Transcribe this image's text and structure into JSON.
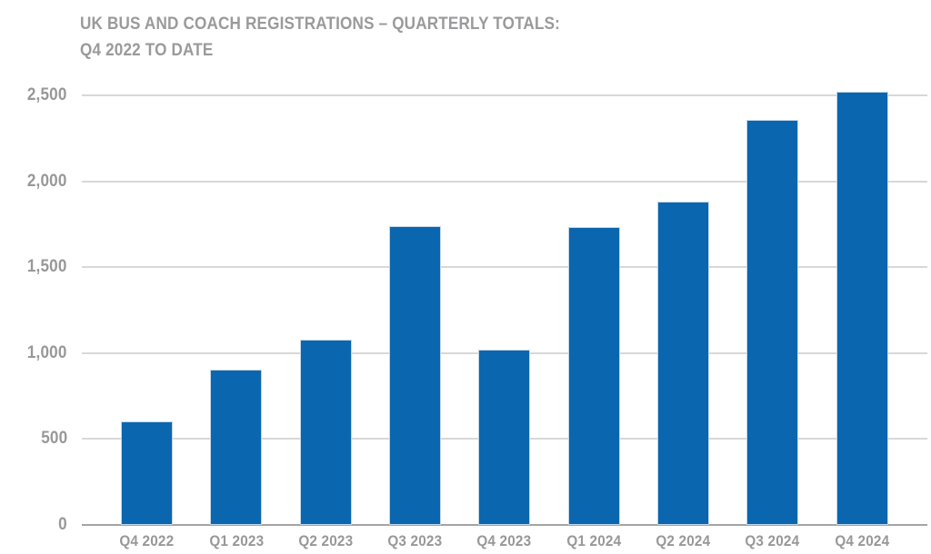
{
  "title": {
    "line1": "UK BUS AND COACH REGISTRATIONS – QUARTERLY TOTALS:",
    "line2": "Q4 2022 TO DATE"
  },
  "chart_data": {
    "type": "bar",
    "title": "UK BUS AND COACH REGISTRATIONS – QUARTERLY TOTALS: Q4 2022 TO DATE",
    "categories": [
      "Q4 2022",
      "Q1 2023",
      "Q2 2023",
      "Q3 2023",
      "Q4 2023",
      "Q1 2024",
      "Q2 2024",
      "Q3 2024",
      "Q4 2024"
    ],
    "values": [
      600,
      905,
      1080,
      1740,
      1020,
      1735,
      1880,
      2355,
      2520
    ],
    "xlabel": "",
    "ylabel": "",
    "ylim": [
      0,
      2500
    ],
    "ytick_interval": 500,
    "yticks": [
      {
        "value": 0,
        "label": "0"
      },
      {
        "value": 500,
        "label": "500"
      },
      {
        "value": 1000,
        "label": "1,000"
      },
      {
        "value": 1500,
        "label": "1,500"
      },
      {
        "value": 2000,
        "label": "2,000"
      },
      {
        "value": 2500,
        "label": "2,500"
      }
    ],
    "grid": true,
    "legend": false
  },
  "colors": {
    "bar": "#0a66ae",
    "bar_edge": "#c3d6e8",
    "title_text": "#9a999b",
    "axis_text": "#98989a",
    "gridline": "#d8d8d8",
    "baseline": "#a4a4a4",
    "background": "#ffffff"
  }
}
